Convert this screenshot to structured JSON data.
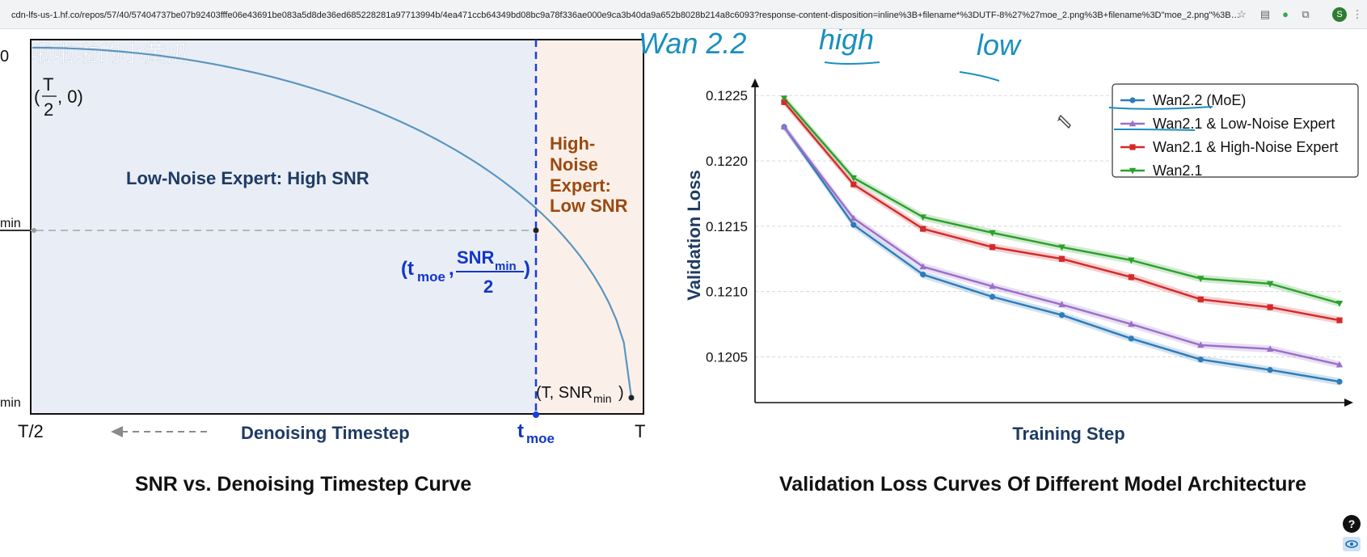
{
  "browser": {
    "url": "cdn-lfs-us-1.hf.co/repos/57/40/57404737be07b92403fffe06e43691be083a5d8de36ed685228281a97713994b/4ea471ccb64349bd08bc9a78f336ae000e9ca3b40da9a652b8028b214a8c6093?response-content-disposition=inline%3B+filename*%3DUTF-8%27%27moe_2.png%3B+filename%3D\"moe_2.png\"%3B&response-...",
    "profile_initial": "S",
    "icons": [
      "star-icon",
      "document-icon",
      "extension-green-icon",
      "puzzle-icon",
      "kebab-menu-icon"
    ]
  },
  "left_plot": {
    "watermark": "啦啦啦的小黄瓜",
    "y_label_top": "0",
    "y_label_mid": "min",
    "y_label_bottom": "min",
    "point_top": {
      "prefix": "(",
      "num": "T",
      "den": "2",
      "suffix": ", 0)"
    },
    "low_noise_label": "Low-Noise Expert: High SNR",
    "high_noise_label": [
      "High-",
      "Noise",
      "Expert:",
      "Low SNR"
    ],
    "mid_point": {
      "prefix": "(t",
      "sub": "moe",
      "sep": ",",
      "num": "SNR",
      "num_sub": "min",
      "den": "2",
      "suffix": ")"
    },
    "end_point": {
      "text": "(T, SNR",
      "sub": "min",
      "suffix": ")"
    },
    "x_left": "T/2",
    "x_center": "Denoising Timestep",
    "x_tmoe": {
      "t": "t",
      "sub": "moe"
    },
    "x_right": "T",
    "caption": "SNR vs. Denoising Timestep Curve",
    "colors": {
      "low_bg": "#e9eef6",
      "high_bg": "#fbf0e9",
      "curve": "#5b95c0",
      "dash": "#1a3fd6",
      "low_text": "#1f3b63",
      "high_text": "#9a4a10",
      "blue_text": "#1236c7"
    }
  },
  "chart_data": {
    "type": "line",
    "title": "Validation Loss Curves Of Different Model Architecture",
    "xlabel": "Training Step",
    "ylabel": "Validation Loss",
    "ylim": [
      0.12015,
      0.12265
    ],
    "yticks": [
      "0.1205",
      "0.1210",
      "0.1215",
      "0.1220",
      "0.1225"
    ],
    "grid": "horizontal",
    "legend_position": "top-right",
    "x": [
      1,
      2,
      3,
      4,
      5,
      6,
      7,
      8,
      9
    ],
    "series": [
      {
        "name": "Wan2.2 (MoE)",
        "color": "#2e7cb8",
        "marker": "circle",
        "values": [
          0.12226,
          0.12151,
          0.12113,
          0.12096,
          0.12082,
          0.12064,
          0.12048,
          0.1204,
          0.12031
        ]
      },
      {
        "name": "Wan2.1 & Low-Noise Expert",
        "color": "#9b6fc9",
        "marker": "triangle-up",
        "values": [
          0.12226,
          0.12156,
          0.12119,
          0.12104,
          0.1209,
          0.12075,
          0.12059,
          0.12056,
          0.12044
        ]
      },
      {
        "name": "Wan2.1 & High-Noise Expert",
        "color": "#d32a2a",
        "marker": "square",
        "values": [
          0.12245,
          0.12182,
          0.12148,
          0.12134,
          0.12125,
          0.12111,
          0.12094,
          0.12088,
          0.12078
        ]
      },
      {
        "name": "Wan2.1",
        "color": "#2ca02c",
        "marker": "triangle-down",
        "values": [
          0.12248,
          0.12187,
          0.12157,
          0.12145,
          0.12134,
          0.12124,
          0.1211,
          0.12106,
          0.12091
        ]
      }
    ]
  },
  "handwriting": {
    "a": "Wan 2.2",
    "b": "high",
    "c": "low"
  },
  "bottom_right_icons": [
    "help-icon",
    "eye-icon"
  ]
}
